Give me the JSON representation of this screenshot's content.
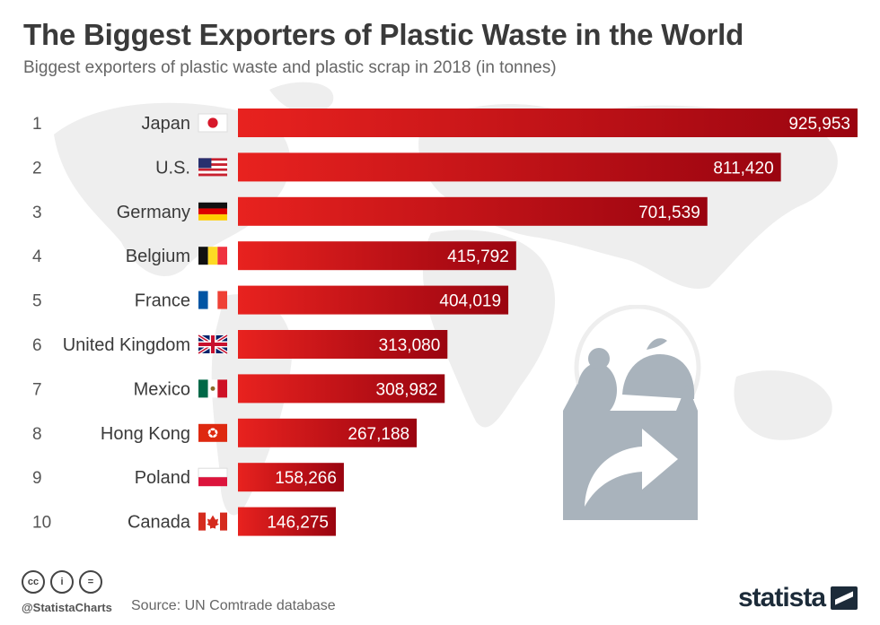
{
  "header": {
    "title": "The Biggest Exporters of Plastic Waste in the World",
    "subtitle": "Biggest exporters of plastic waste and plastic scrap in 2018 (in tonnes)"
  },
  "colors": {
    "bar_start": "#e8221f",
    "bar_end": "#9a0410",
    "map": "#eeeeee",
    "illustration": "#a9b3bc",
    "brand": "#1c2b39"
  },
  "chart_data": {
    "type": "bar",
    "orientation": "horizontal",
    "title": "The Biggest Exporters of Plastic Waste in the World",
    "subtitle": "Biggest exporters of plastic waste and plastic scrap in 2018 (in tonnes)",
    "ranks": [
      "1",
      "2",
      "3",
      "4",
      "5",
      "6",
      "7",
      "8",
      "9",
      "10"
    ],
    "categories": [
      "Japan",
      "U.S.",
      "Germany",
      "Belgium",
      "France",
      "United Kingdom",
      "Mexico",
      "Hong Kong",
      "Poland",
      "Canada"
    ],
    "values": [
      925953,
      811420,
      701539,
      415792,
      404019,
      313080,
      308982,
      267188,
      158266,
      146275
    ],
    "value_labels": [
      "925,953",
      "811,420",
      "701,539",
      "415,792",
      "404,019",
      "313,080",
      "308,982",
      "267,188",
      "158,266",
      "146,275"
    ],
    "flags": [
      "flag-japan",
      "flag-us",
      "flag-germany",
      "flag-belgium",
      "flag-france",
      "flag-uk",
      "flag-mexico",
      "flag-hong-kong",
      "flag-poland",
      "flag-canada"
    ],
    "xlim": [
      0,
      925953
    ],
    "grid": false,
    "legend": "none"
  },
  "footer": {
    "license_icons": [
      "cc",
      "i",
      "="
    ],
    "handle": "@StatistaCharts",
    "source": "Source: UN Comtrade database",
    "brand": "statista"
  }
}
